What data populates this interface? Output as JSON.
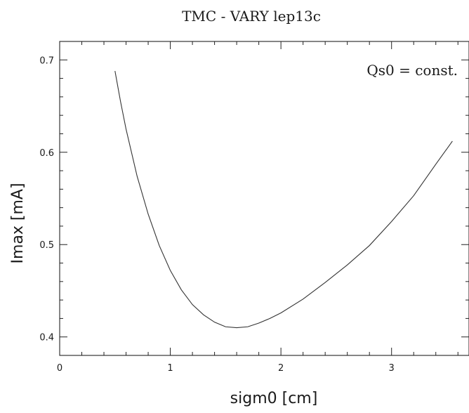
{
  "chart_data": {
    "type": "line",
    "title": "TMC  -  VARY lep13c",
    "xlabel": "sigm0  [cm]",
    "ylabel": "Imax  [mA]",
    "annotation": "Qs0  =  const.",
    "xlim": [
      0,
      3.7
    ],
    "ylim": [
      0.38,
      0.72
    ],
    "x_ticks": [
      0,
      1,
      2,
      3
    ],
    "x_tick_labels": [
      "0",
      "1",
      "2",
      "3"
    ],
    "y_ticks": [
      0.4,
      0.5,
      0.6,
      0.7
    ],
    "y_tick_labels": [
      "0.4",
      "0.5",
      "0.6",
      "0.7"
    ],
    "grid": false,
    "series": [
      {
        "x": [
          0.5,
          0.55,
          0.6,
          0.7,
          0.8,
          0.9,
          1.0,
          1.1,
          1.2,
          1.3,
          1.4,
          1.5,
          1.6,
          1.7,
          1.8,
          1.9,
          2.0,
          2.2,
          2.4,
          2.6,
          2.8,
          3.0,
          3.2,
          3.4,
          3.55
        ],
        "y": [
          0.688,
          0.655,
          0.625,
          0.574,
          0.533,
          0.499,
          0.472,
          0.451,
          0.435,
          0.424,
          0.416,
          0.411,
          0.41,
          0.411,
          0.415,
          0.42,
          0.426,
          0.441,
          0.459,
          0.478,
          0.499,
          0.525,
          0.553,
          0.587,
          0.612
        ],
        "color": "#333333"
      }
    ]
  }
}
